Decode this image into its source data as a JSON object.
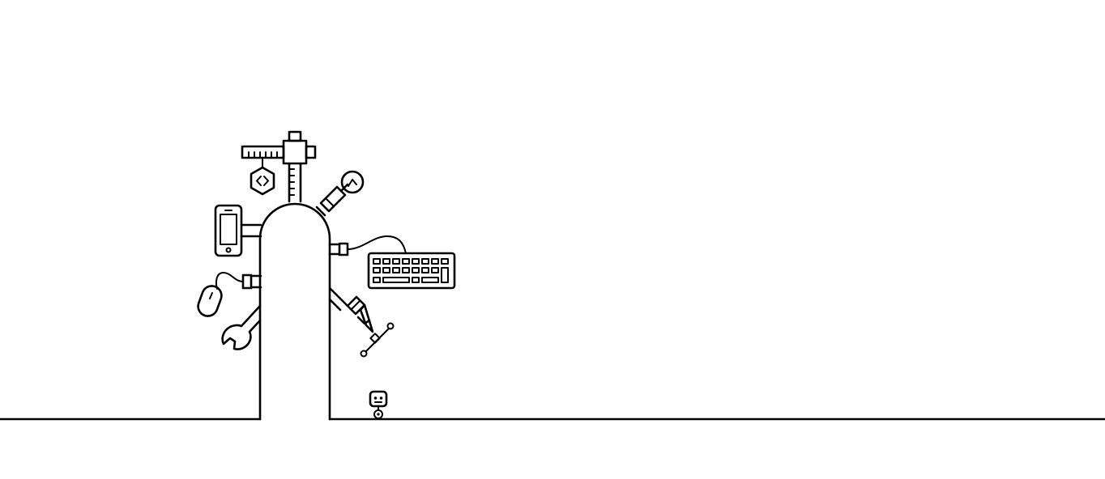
{
  "scene": {
    "stroke_color": "#000000",
    "background_color": "#ffffff",
    "icons": [
      "ruler-icon",
      "code-hexagon-icon",
      "smartphone-icon",
      "lightbulb-icon",
      "keyboard-icon",
      "mouse-icon",
      "wrench-icon",
      "vector-pen-icon",
      "robot-icon"
    ]
  }
}
